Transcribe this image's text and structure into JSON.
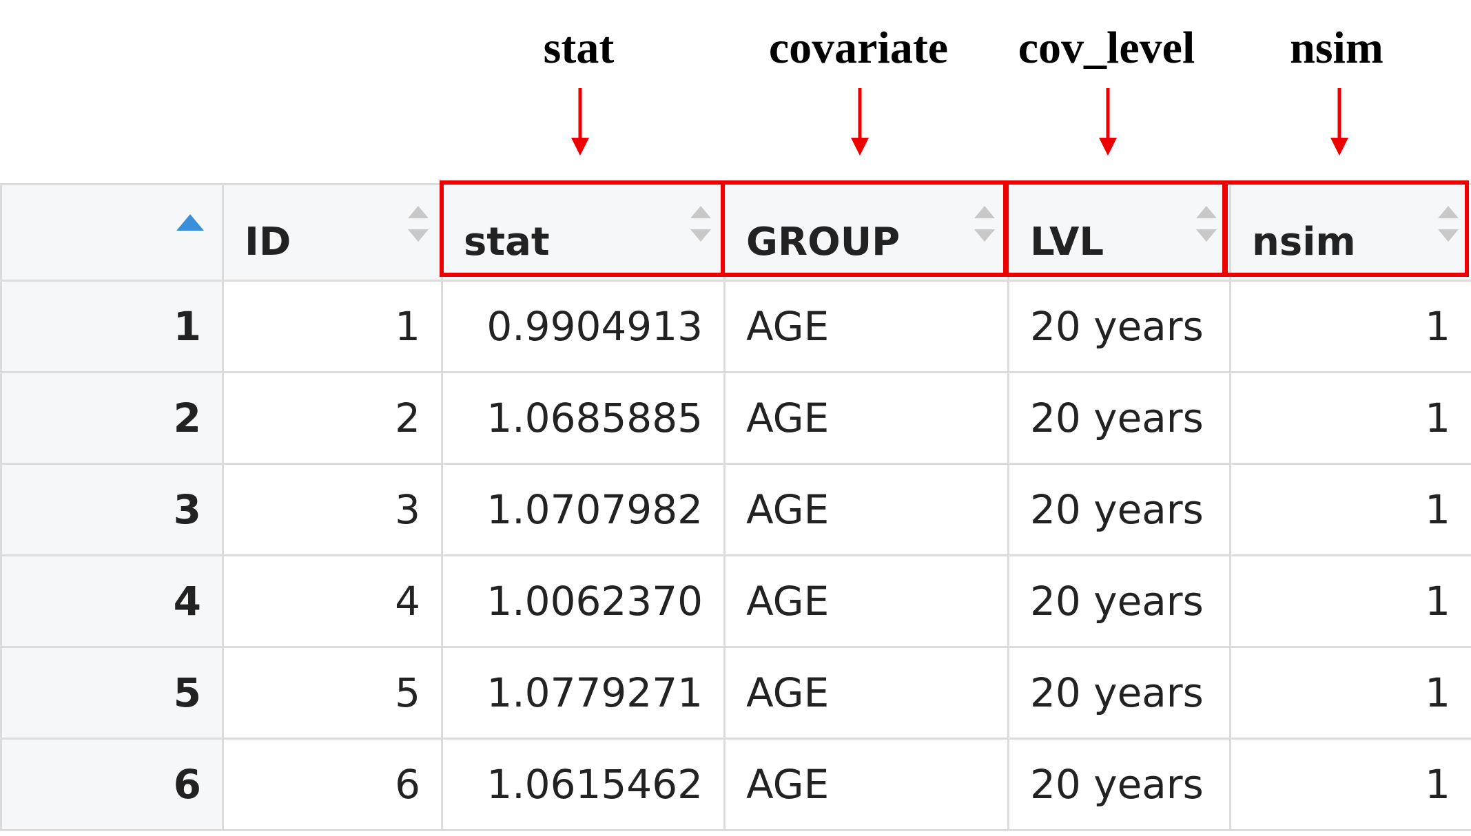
{
  "annotations": [
    {
      "label": "stat",
      "target": "stat"
    },
    {
      "label": "covariate",
      "target": "GROUP"
    },
    {
      "label": "cov_level",
      "target": "LVL"
    },
    {
      "label": "nsim",
      "target": "nsim"
    }
  ],
  "colors": {
    "annotation_red": "#ee0000",
    "sort_active_blue": "#3a8fd9",
    "sort_inactive_gray": "#c8c8c8",
    "header_bg": "#f6f7f9",
    "grid": "#dcdcdc"
  },
  "table": {
    "sort_column": "row-index",
    "sort_direction": "ascending",
    "columns": [
      "ID",
      "stat",
      "GROUP",
      "LVL",
      "nsim"
    ],
    "rows": [
      {
        "row": "1",
        "ID": "1",
        "stat": "0.9904913",
        "GROUP": "AGE",
        "LVL": "20 years",
        "nsim": "1"
      },
      {
        "row": "2",
        "ID": "2",
        "stat": "1.0685885",
        "GROUP": "AGE",
        "LVL": "20 years",
        "nsim": "1"
      },
      {
        "row": "3",
        "ID": "3",
        "stat": "1.0707982",
        "GROUP": "AGE",
        "LVL": "20 years",
        "nsim": "1"
      },
      {
        "row": "4",
        "ID": "4",
        "stat": "1.0062370",
        "GROUP": "AGE",
        "LVL": "20 years",
        "nsim": "1"
      },
      {
        "row": "5",
        "ID": "5",
        "stat": "1.0779271",
        "GROUP": "AGE",
        "LVL": "20 years",
        "nsim": "1"
      },
      {
        "row": "6",
        "ID": "6",
        "stat": "1.0615462",
        "GROUP": "AGE",
        "LVL": "20 years",
        "nsim": "1"
      }
    ]
  }
}
